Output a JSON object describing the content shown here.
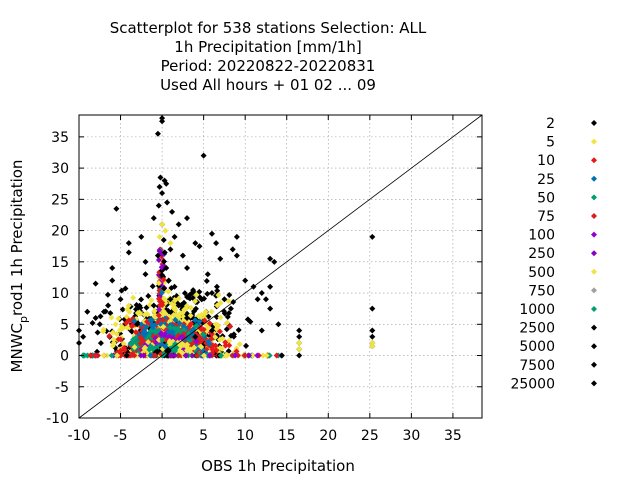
{
  "chart_data": {
    "type": "scatter",
    "title_lines": [
      "Scatterplot for  538 stations Selection: ALL",
      "1h Precipitation [mm/1h]",
      "Period: 20220822-20220831",
      "Used  All hours  + 01 02 ... 09"
    ],
    "xlabel": "OBS 1h Precipitation",
    "ylabel_main": "MNWC",
    "ylabel_sub": "p",
    "ylabel_rest": "rod1 1h Precipitation",
    "xlim": [
      -10,
      38.5
    ],
    "ylim": [
      -10,
      38.5
    ],
    "xticks": [
      -10,
      -5,
      0,
      5,
      10,
      15,
      20,
      25,
      30,
      35
    ],
    "yticks": [
      -10,
      -5,
      0,
      5,
      10,
      15,
      20,
      25,
      30,
      35
    ],
    "grid": true,
    "diagonal": true,
    "legend_position": "outside-right",
    "series": [
      {
        "name": "2",
        "color": "#000000"
      },
      {
        "name": "5",
        "color": "#f0e442"
      },
      {
        "name": "10",
        "color": "#e41a1c"
      },
      {
        "name": "25",
        "color": "#0072b2"
      },
      {
        "name": "50",
        "color": "#009e73"
      },
      {
        "name": "75",
        "color": "#d62020"
      },
      {
        "name": "100",
        "color": "#9400d3"
      },
      {
        "name": "250",
        "color": "#8a00c2"
      },
      {
        "name": "500",
        "color": "#f0e442"
      },
      {
        "name": "750",
        "color": "#a0a0a0"
      },
      {
        "name": "1000",
        "color": "#009e73"
      },
      {
        "name": "2500",
        "color": "#000000"
      },
      {
        "name": "5000",
        "color": "#000000"
      },
      {
        "name": "7500",
        "color": "#000000"
      },
      {
        "name": "25000",
        "color": "#000000"
      }
    ],
    "outlier_points": [
      [
        0,
        38
      ],
      [
        0,
        37.5
      ],
      [
        -0.5,
        35.5
      ],
      [
        5,
        32
      ],
      [
        -0.2,
        28.5
      ],
      [
        0.3,
        28
      ],
      [
        -0.3,
        27
      ],
      [
        0.5,
        27.5
      ],
      [
        0,
        26
      ],
      [
        -5.5,
        23.5
      ],
      [
        -0.4,
        24
      ],
      [
        0.6,
        24.5
      ],
      [
        1.2,
        23
      ],
      [
        -1,
        22
      ],
      [
        0,
        21
      ],
      [
        2,
        21
      ],
      [
        3,
        22
      ],
      [
        -4,
        18
      ],
      [
        -2.5,
        19
      ],
      [
        1.5,
        19
      ],
      [
        4,
        18
      ],
      [
        6,
        19.5
      ],
      [
        8.5,
        17
      ],
      [
        9,
        19
      ],
      [
        4.5,
        17.5
      ],
      [
        6.5,
        18
      ],
      [
        -4,
        16.5
      ],
      [
        -2,
        15
      ],
      [
        2.5,
        16
      ],
      [
        7,
        15.5
      ],
      [
        9,
        16
      ],
      [
        -6,
        14
      ],
      [
        -8,
        11.5
      ],
      [
        -6,
        12
      ],
      [
        -2,
        13
      ],
      [
        3,
        14
      ],
      [
        13,
        15.5
      ],
      [
        13.5,
        15
      ],
      [
        13,
        11
      ],
      [
        12.5,
        9
      ],
      [
        13,
        7.5
      ],
      [
        14,
        5
      ],
      [
        -9,
        7
      ],
      [
        -8,
        6
      ],
      [
        -7,
        7
      ],
      [
        -10,
        4
      ],
      [
        -9.5,
        3
      ],
      [
        -10,
        2
      ],
      [
        12,
        10
      ],
      [
        11,
        11
      ],
      [
        10,
        12
      ],
      [
        11.5,
        9
      ],
      [
        12,
        4
      ],
      [
        16.5,
        4
      ],
      [
        16.5,
        3
      ],
      [
        16.5,
        2
      ],
      [
        16.5,
        1
      ],
      [
        16.5,
        0
      ],
      [
        25.3,
        19
      ],
      [
        25.3,
        7.5
      ],
      [
        25.3,
        4
      ],
      [
        25.3,
        3
      ],
      [
        25.3,
        2
      ],
      [
        25.3,
        1.5
      ],
      [
        1,
        9
      ],
      [
        2,
        8
      ],
      [
        -1,
        8
      ],
      [
        3,
        6
      ],
      [
        -3,
        5
      ],
      [
        4,
        3
      ],
      [
        6,
        4
      ],
      [
        0.5,
        14
      ],
      [
        0.8,
        12
      ],
      [
        1.5,
        11
      ],
      [
        -0.5,
        16
      ],
      [
        1,
        17
      ],
      [
        0.2,
        18.5
      ],
      [
        5.5,
        13
      ],
      [
        6,
        10
      ],
      [
        7.5,
        9
      ],
      [
        -5,
        9
      ],
      [
        -6.5,
        8
      ],
      [
        -7.5,
        5
      ]
    ],
    "yellow_points": [
      [
        25.3,
        1.5
      ],
      [
        25.3,
        2
      ],
      [
        16.5,
        1
      ],
      [
        16.5,
        2
      ],
      [
        0,
        21
      ],
      [
        -0.3,
        19
      ],
      [
        0.4,
        20
      ],
      [
        1,
        18
      ]
    ]
  }
}
